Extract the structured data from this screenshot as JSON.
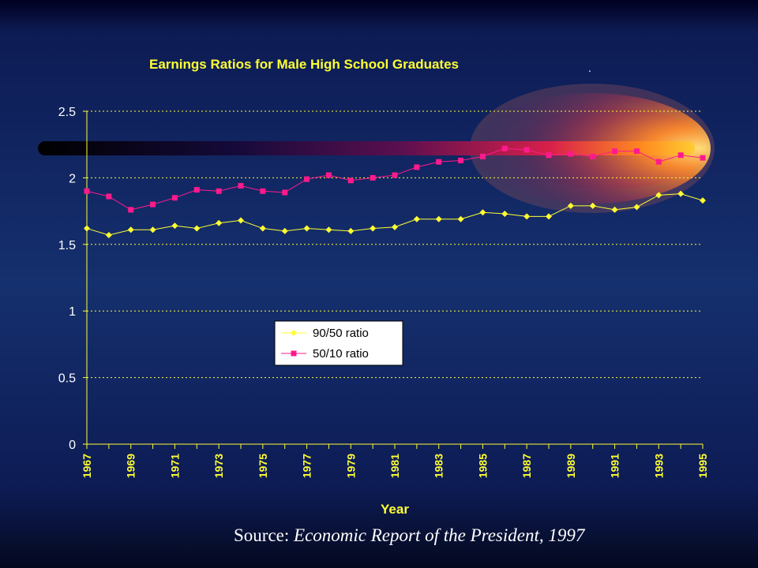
{
  "chart_data": {
    "type": "line",
    "title": "Earnings Ratios for Male High School Graduates",
    "xlabel": "Year",
    "ylabel": "",
    "x": [
      1967,
      1968,
      1969,
      1970,
      1971,
      1972,
      1973,
      1974,
      1975,
      1976,
      1977,
      1978,
      1979,
      1980,
      1981,
      1982,
      1983,
      1984,
      1985,
      1986,
      1987,
      1988,
      1989,
      1990,
      1991,
      1992,
      1993,
      1994,
      1995
    ],
    "x_tick_labels": [
      "1967",
      "1969",
      "1971",
      "1973",
      "1975",
      "1977",
      "1979",
      "1981",
      "1983",
      "1985",
      "1987",
      "1989",
      "1991",
      "1993",
      "1995"
    ],
    "y_tick_labels": [
      "0",
      "0.5",
      "1",
      "1.5",
      "2",
      "2.5"
    ],
    "ylim": [
      0,
      2.5
    ],
    "grid": "horizontal dotted",
    "legend_position": "center-left",
    "series": [
      {
        "name": "90/50 ratio",
        "color": "#ffff33",
        "marker": "diamond",
        "values": [
          1.62,
          1.57,
          1.61,
          1.61,
          1.64,
          1.62,
          1.66,
          1.68,
          1.62,
          1.6,
          1.62,
          1.61,
          1.6,
          1.62,
          1.63,
          1.69,
          1.69,
          1.69,
          1.74,
          1.73,
          1.71,
          1.71,
          1.79,
          1.79,
          1.76,
          1.78,
          1.87,
          1.88,
          1.83
        ]
      },
      {
        "name": "50/10 ratio",
        "color": "#ff1a8c",
        "marker": "square",
        "values": [
          1.9,
          1.86,
          1.76,
          1.8,
          1.85,
          1.91,
          1.9,
          1.94,
          1.9,
          1.89,
          1.99,
          2.02,
          1.98,
          2.0,
          2.02,
          2.08,
          2.12,
          2.13,
          2.16,
          2.22,
          2.21,
          2.17,
          2.18,
          2.16,
          2.2,
          2.2,
          2.12,
          2.17,
          2.15
        ]
      }
    ]
  },
  "source": {
    "prefix": "Source: ",
    "citation": "Economic Report of the President, 1997"
  },
  "stray_mark": "."
}
